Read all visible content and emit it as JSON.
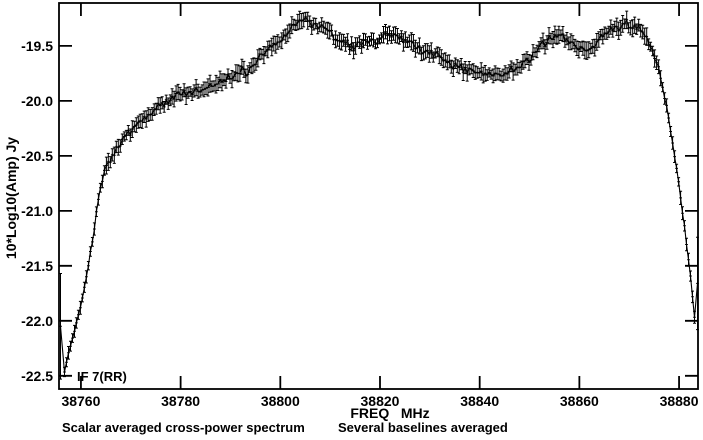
{
  "chart_data": {
    "type": "line",
    "title": "",
    "xlabel": "FREQ   MHz",
    "ylabel": "10*Log10(Amp) Jy",
    "caption_left": "Scalar averaged cross-power spectrum",
    "caption_right": "Several baselines averaged",
    "if_label": "IF 7(RR)",
    "legend_position": "bottom-left-inside",
    "grid": false,
    "marker": "plus-with-error-bars",
    "line_color": "#000000",
    "background_color": "#ffffff",
    "x_ticks": [
      38760,
      38780,
      38800,
      38820,
      38840,
      38860,
      38880
    ],
    "y_ticks": [
      -19.5,
      -20.0,
      -20.5,
      -21.0,
      -21.5,
      -22.0,
      -22.5
    ],
    "xlim": [
      38755.6,
      38883.8
    ],
    "ylim": [
      -22.62,
      -19.11
    ],
    "x_unit": "MHz",
    "y_unit": "10*Log10(Amp) Jy",
    "channel_step_mhz": 0.4,
    "noise_rms_db": 0.028,
    "typical_errorbar_db": 0.05,
    "points": [
      [
        38755.9,
        -22.05,
        0.48
      ],
      [
        38756.4,
        -22.52
      ],
      [
        38757.5,
        -22.3
      ],
      [
        38758.5,
        -22.12
      ],
      [
        38759.5,
        -21.94
      ],
      [
        38760.5,
        -21.75
      ],
      [
        38761.3,
        -21.55
      ],
      [
        38762.0,
        -21.35
      ],
      [
        38762.7,
        -21.15
      ],
      [
        38763.3,
        -20.93
      ],
      [
        38763.9,
        -20.79
      ],
      [
        38764.5,
        -20.68
      ],
      [
        38765.2,
        -20.6
      ],
      [
        38766.0,
        -20.54
      ],
      [
        38766.8,
        -20.46
      ],
      [
        38767.8,
        -20.39
      ],
      [
        38768.8,
        -20.33
      ],
      [
        38770.4,
        -20.26
      ],
      [
        38771.8,
        -20.2
      ],
      [
        38773.2,
        -20.15
      ],
      [
        38774.8,
        -20.08
      ],
      [
        38776.9,
        -20.01
      ],
      [
        38779.0,
        -19.97
      ],
      [
        38781.5,
        -19.93
      ],
      [
        38784.0,
        -19.9
      ],
      [
        38786.5,
        -19.88
      ],
      [
        38788.5,
        -19.82
      ],
      [
        38790.3,
        -19.78
      ],
      [
        38791.9,
        -19.71
      ],
      [
        38793.3,
        -19.74
      ],
      [
        38794.9,
        -19.65
      ],
      [
        38796.5,
        -19.57
      ],
      [
        38798.0,
        -19.51
      ],
      [
        38800.0,
        -19.43
      ],
      [
        38802.0,
        -19.35
      ],
      [
        38803.5,
        -19.29
      ],
      [
        38805.0,
        -19.25
      ],
      [
        38806.5,
        -19.31
      ],
      [
        38808.0,
        -19.33
      ],
      [
        38809.5,
        -19.37
      ],
      [
        38811.0,
        -19.42
      ],
      [
        38813.0,
        -19.47
      ],
      [
        38815.0,
        -19.51
      ],
      [
        38817.0,
        -19.45
      ],
      [
        38819.0,
        -19.47
      ],
      [
        38821.0,
        -19.41
      ],
      [
        38822.5,
        -19.38
      ],
      [
        38824.0,
        -19.41
      ],
      [
        38826.0,
        -19.46
      ],
      [
        38828.0,
        -19.52
      ],
      [
        38830.0,
        -19.56
      ],
      [
        38832.0,
        -19.6
      ],
      [
        38834.0,
        -19.65
      ],
      [
        38836.0,
        -19.7
      ],
      [
        38838.0,
        -19.73
      ],
      [
        38840.0,
        -19.74
      ],
      [
        38842.0,
        -19.75
      ],
      [
        38844.0,
        -19.76
      ],
      [
        38846.0,
        -19.73
      ],
      [
        38848.0,
        -19.68
      ],
      [
        38850.0,
        -19.62
      ],
      [
        38852.0,
        -19.51
      ],
      [
        38854.0,
        -19.44
      ],
      [
        38856.0,
        -19.37
      ],
      [
        38857.2,
        -19.43
      ],
      [
        38858.2,
        -19.46
      ],
      [
        38859.3,
        -19.5
      ],
      [
        38860.5,
        -19.53
      ],
      [
        38862.0,
        -19.54
      ],
      [
        38863.2,
        -19.49
      ],
      [
        38864.2,
        -19.44
      ],
      [
        38865.2,
        -19.39
      ],
      [
        38866.2,
        -19.36
      ],
      [
        38868.0,
        -19.33
      ],
      [
        38869.6,
        -19.29
      ],
      [
        38871.0,
        -19.32
      ],
      [
        38872.2,
        -19.34
      ],
      [
        38873.0,
        -19.4
      ],
      [
        38874.2,
        -19.5
      ],
      [
        38875.2,
        -19.62
      ],
      [
        38876.0,
        -19.74
      ],
      [
        38876.8,
        -19.9
      ],
      [
        38877.5,
        -20.05
      ],
      [
        38878.3,
        -20.26
      ],
      [
        38879.0,
        -20.47
      ],
      [
        38879.8,
        -20.7
      ],
      [
        38880.5,
        -20.94
      ],
      [
        38881.2,
        -21.18
      ],
      [
        38881.9,
        -21.44
      ],
      [
        38882.5,
        -21.69
      ],
      [
        38883.0,
        -21.92
      ],
      [
        38883.3,
        -22.05
      ],
      [
        38883.7,
        -21.66,
        0.42
      ]
    ]
  }
}
